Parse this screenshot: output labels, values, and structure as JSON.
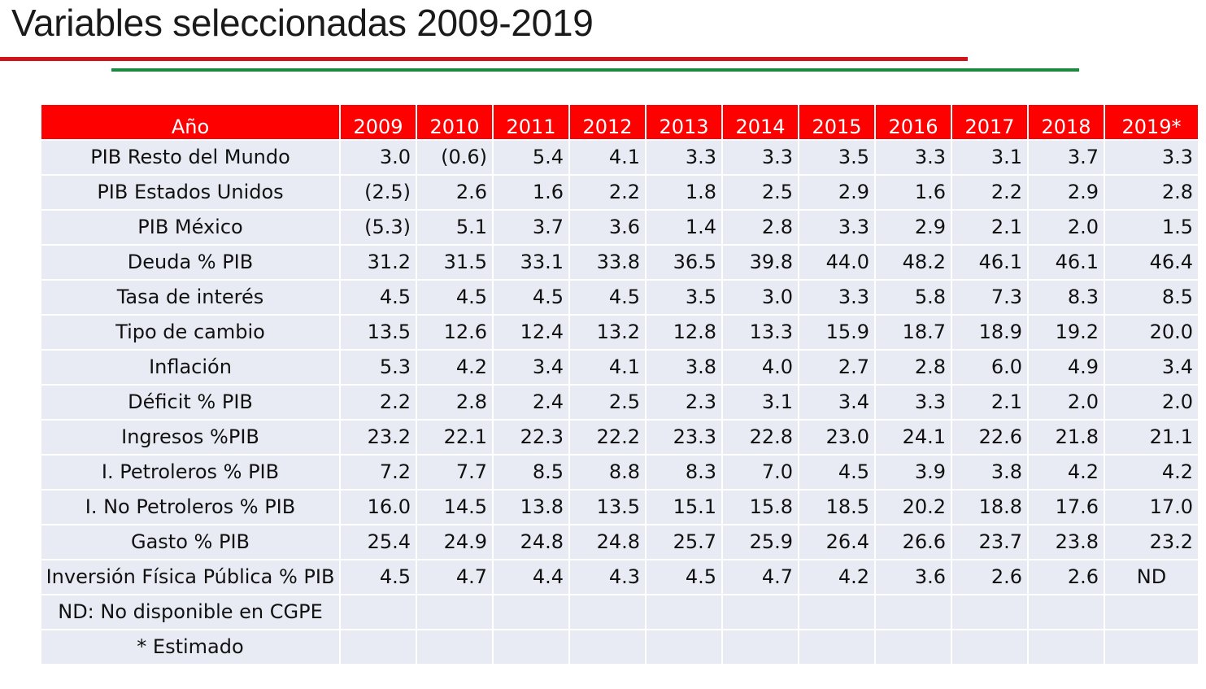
{
  "title": "Variables seleccionadas 2009-2019",
  "colors": {
    "header_bg": "#ff0000",
    "row_bg": "#e8ebf3",
    "rule_red": "#d0141c",
    "rule_green": "#1a8a3e"
  },
  "table": {
    "header": [
      "Año",
      "2009",
      "2010",
      "2011",
      "2012",
      "2013",
      "2014",
      "2015",
      "2016",
      "2017",
      "2018",
      "2019*"
    ],
    "rows": [
      {
        "label": "PIB Resto del Mundo",
        "values": [
          "3.0",
          "(0.6)",
          "5.4",
          "4.1",
          "3.3",
          "3.3",
          "3.5",
          "3.3",
          "3.1",
          "3.7",
          "3.3"
        ]
      },
      {
        "label": "PIB Estados Unidos",
        "values": [
          "(2.5)",
          "2.6",
          "1.6",
          "2.2",
          "1.8",
          "2.5",
          "2.9",
          "1.6",
          "2.2",
          "2.9",
          "2.8"
        ]
      },
      {
        "label": "PIB México",
        "values": [
          "(5.3)",
          "5.1",
          "3.7",
          "3.6",
          "1.4",
          "2.8",
          "3.3",
          "2.9",
          "2.1",
          "2.0",
          "1.5"
        ]
      },
      {
        "label": "Deuda % PIB",
        "values": [
          "31.2",
          "31.5",
          "33.1",
          "33.8",
          "36.5",
          "39.8",
          "44.0",
          "48.2",
          "46.1",
          "46.1",
          "46.4"
        ]
      },
      {
        "label": "Tasa de interés",
        "values": [
          "4.5",
          "4.5",
          "4.5",
          "4.5",
          "3.5",
          "3.0",
          "3.3",
          "5.8",
          "7.3",
          "8.3",
          "8.5"
        ]
      },
      {
        "label": "Tipo de cambio",
        "values": [
          "13.5",
          "12.6",
          "12.4",
          "13.2",
          "12.8",
          "13.3",
          "15.9",
          "18.7",
          "18.9",
          "19.2",
          "20.0"
        ]
      },
      {
        "label": "Inflación",
        "values": [
          "5.3",
          "4.2",
          "3.4",
          "4.1",
          "3.8",
          "4.0",
          "2.7",
          "2.8",
          "6.0",
          "4.9",
          "3.4"
        ]
      },
      {
        "label": "Déficit % PIB",
        "values": [
          "2.2",
          "2.8",
          "2.4",
          "2.5",
          "2.3",
          "3.1",
          "3.4",
          "3.3",
          "2.1",
          "2.0",
          "2.0"
        ]
      },
      {
        "label": "Ingresos %PIB",
        "values": [
          "23.2",
          "22.1",
          "22.3",
          "22.2",
          "23.3",
          "22.8",
          "23.0",
          "24.1",
          "22.6",
          "21.8",
          "21.1"
        ]
      },
      {
        "label": "I. Petroleros % PIB",
        "values": [
          "7.2",
          "7.7",
          "8.5",
          "8.8",
          "8.3",
          "7.0",
          "4.5",
          "3.9",
          "3.8",
          "4.2",
          "4.2"
        ]
      },
      {
        "label": "I. No Petroleros % PIB",
        "values": [
          "16.0",
          "14.5",
          "13.8",
          "13.5",
          "15.1",
          "15.8",
          "18.5",
          "20.2",
          "18.8",
          "17.6",
          "17.0"
        ]
      },
      {
        "label": "Gasto % PIB",
        "values": [
          "25.4",
          "24.9",
          "24.8",
          "24.8",
          "25.7",
          "25.9",
          "26.4",
          "26.6",
          "23.7",
          "23.8",
          "23.2"
        ]
      },
      {
        "label": "Inversión Física Pública % PIB",
        "values": [
          "4.5",
          "4.7",
          "4.4",
          "4.3",
          "4.5",
          "4.7",
          "4.2",
          "3.6",
          "2.6",
          "2.6",
          "ND"
        ]
      },
      {
        "label": "ND: No disponible en CGPE",
        "values": [
          "",
          "",
          "",
          "",
          "",
          "",
          "",
          "",
          "",
          "",
          ""
        ]
      },
      {
        "label": "* Estimado",
        "values": [
          "",
          "",
          "",
          "",
          "",
          "",
          "",
          "",
          "",
          "",
          ""
        ]
      }
    ]
  }
}
